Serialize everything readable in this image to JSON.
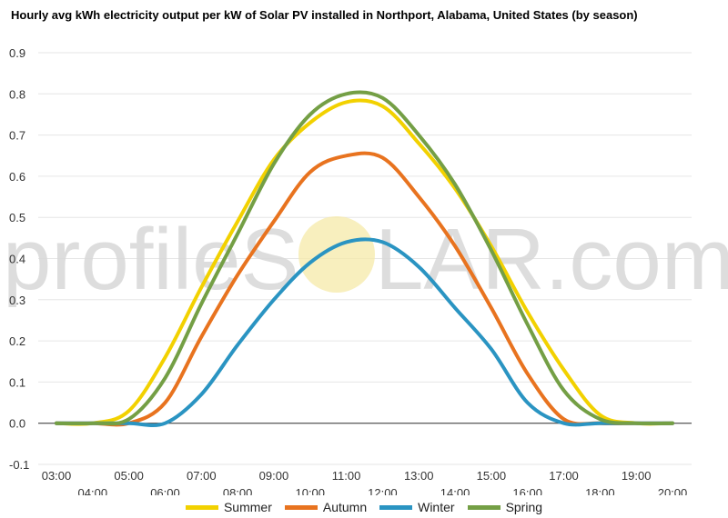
{
  "chart_data": {
    "type": "line",
    "title": "Hourly avg kWh electricity output per kW of Solar PV installed in Northport, Alabama, United States (by season)",
    "x": [
      "03:00",
      "04:00",
      "05:00",
      "06:00",
      "07:00",
      "08:00",
      "09:00",
      "10:00",
      "11:00",
      "12:00",
      "13:00",
      "14:00",
      "15:00",
      "16:00",
      "17:00",
      "18:00",
      "19:00",
      "20:00"
    ],
    "x_tick_labels": [
      "03:00",
      "04:00",
      "05:00",
      "06:00",
      "07:00",
      "08:00",
      "09:00",
      "10:00",
      "11:00",
      "12:00",
      "13:00",
      "14:00",
      "15:00",
      "16:00",
      "17:00",
      "18:00",
      "19:00",
      "20:00"
    ],
    "ylim": [
      -0.1,
      0.9
    ],
    "y_ticks": [
      "0.9",
      "0.8",
      "0.7",
      "0.6",
      "0.5",
      "0.4",
      "0.3",
      "0.2",
      "0.1",
      "0.0",
      "-0.1"
    ],
    "y_tick_values": [
      0.9,
      0.8,
      0.7,
      0.6,
      0.5,
      0.4,
      0.3,
      0.2,
      0.1,
      0.0,
      -0.1
    ],
    "grid": true,
    "legend_position": "bottom",
    "series": [
      {
        "name": "Summer",
        "color": "#f2d100",
        "values": [
          0.0,
          0.0,
          0.03,
          0.16,
          0.33,
          0.49,
          0.64,
          0.73,
          0.78,
          0.77,
          0.68,
          0.57,
          0.43,
          0.27,
          0.13,
          0.02,
          0.0,
          0.0
        ]
      },
      {
        "name": "Autumn",
        "color": "#e8731f",
        "values": [
          0.0,
          0.0,
          0.0,
          0.05,
          0.21,
          0.36,
          0.49,
          0.61,
          0.65,
          0.645,
          0.55,
          0.43,
          0.28,
          0.12,
          0.01,
          0.0,
          0.0,
          0.0
        ]
      },
      {
        "name": "Winter",
        "color": "#2a94c2",
        "values": [
          0.0,
          0.0,
          0.0,
          0.0,
          0.07,
          0.19,
          0.3,
          0.39,
          0.44,
          0.44,
          0.38,
          0.28,
          0.18,
          0.05,
          0.0,
          0.0,
          0.0,
          0.0
        ]
      },
      {
        "name": "Spring",
        "color": "#749f45",
        "values": [
          0.0,
          0.0,
          0.01,
          0.11,
          0.29,
          0.46,
          0.63,
          0.75,
          0.8,
          0.79,
          0.7,
          0.58,
          0.42,
          0.24,
          0.08,
          0.01,
          0.0,
          0.0
        ]
      }
    ]
  },
  "watermark": {
    "left": "profileS",
    "right": "LAR.com",
    "sun_color": "#f5e9a8"
  },
  "colors": {
    "grid": "#e6e6e6",
    "zero_line": "#333333",
    "background": "#ffffff"
  }
}
